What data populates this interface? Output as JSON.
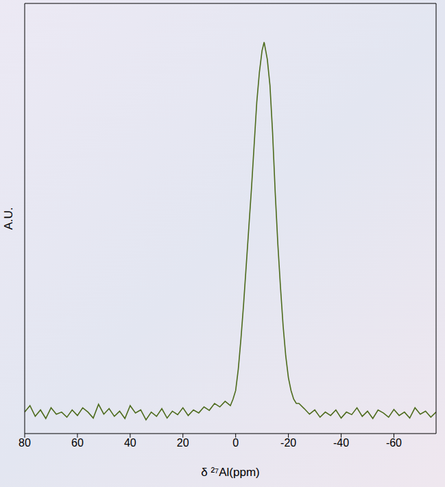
{
  "chart_data": {
    "type": "line",
    "xlabel": "δ ²⁷Al(ppm)",
    "ylabel": "A.U.",
    "xlim": [
      80,
      -76
    ],
    "xticks": [
      80,
      60,
      40,
      20,
      0,
      -20,
      -40,
      -60
    ],
    "ylim": [
      0,
      100
    ],
    "tick_labels": "x",
    "grid": false,
    "color": "#4d6b1c",
    "x": [
      80,
      78,
      76,
      74,
      72,
      70,
      68,
      66,
      64,
      62,
      60,
      58,
      56,
      54,
      52,
      50,
      48,
      46,
      44,
      42,
      40,
      38,
      36,
      34,
      32,
      30,
      28,
      26,
      24,
      22,
      20,
      18,
      16,
      14,
      12,
      10,
      8,
      6,
      4,
      2,
      1,
      0,
      -1,
      -2,
      -3,
      -4,
      -5,
      -6,
      -7,
      -8,
      -9,
      -10,
      -10.8,
      -12,
      -13,
      -14,
      -15,
      -16,
      -17,
      -18,
      -19,
      -20,
      -21,
      -22,
      -23,
      -24,
      -26,
      -28,
      -30,
      -32,
      -34,
      -36,
      -38,
      -40,
      -42,
      -44,
      -46,
      -48,
      -50,
      -52,
      -54,
      -56,
      -58,
      -60,
      -62,
      -64,
      -66,
      -68,
      -70,
      -72,
      -74,
      -76
    ],
    "values": [
      5,
      6.5,
      4,
      5.5,
      3.5,
      6,
      4.5,
      5,
      3.8,
      5.5,
      4.2,
      6,
      5,
      3.6,
      6.8,
      4.5,
      5.8,
      4,
      5.2,
      3.5,
      6.5,
      4.8,
      5.5,
      3.2,
      5,
      4,
      5.8,
      3.6,
      5.2,
      4.4,
      6,
      4.2,
      5.5,
      4.8,
      6.2,
      5.4,
      7,
      6.2,
      7.5,
      6.5,
      8,
      10,
      15,
      22,
      30,
      39,
      48,
      57,
      67,
      77,
      84,
      89,
      91,
      87,
      81,
      70,
      56,
      44,
      34,
      25,
      18,
      13,
      10,
      8,
      7,
      7,
      5.8,
      4.5,
      5.5,
      3.8,
      5,
      4.2,
      5.5,
      3.6,
      5,
      4.4,
      6,
      4,
      5.2,
      3.5,
      5.5,
      4.8,
      3.8,
      5.6,
      4.2,
      5,
      3.6,
      6,
      4.5,
      5.2,
      3.8,
      5
    ]
  }
}
